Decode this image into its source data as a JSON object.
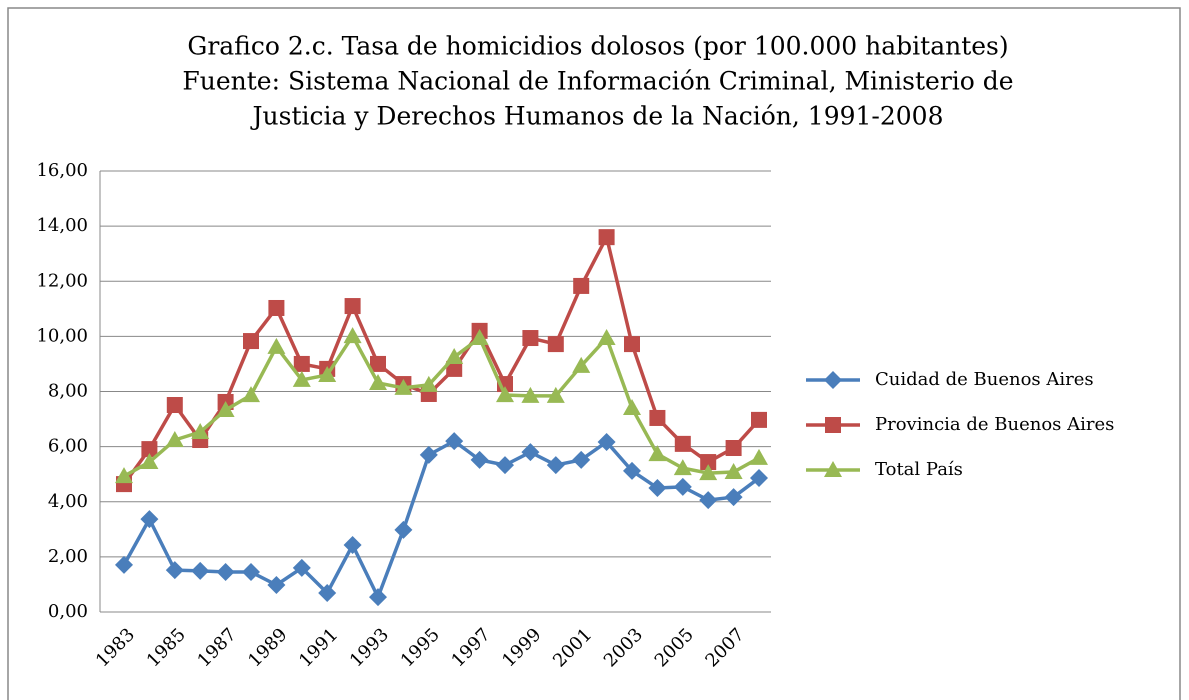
{
  "chart_data": {
    "type": "line",
    "title": [
      "Grafico 2.c. Tasa de homicidios dolosos (por 100.000 habitantes)",
      "Fuente: Sistema Nacional de Información Criminal, Ministerio de",
      "Justicia y Derechos Humanos de la Nación, 1991-2008"
    ],
    "categories": [
      "1983",
      null,
      "1985",
      null,
      "1987",
      null,
      "1989",
      null,
      "1991",
      null,
      "1993",
      null,
      "1995",
      null,
      "1997",
      null,
      "1999",
      null,
      "2001",
      null,
      "2003",
      null,
      "2005",
      null,
      "2007",
      null
    ],
    "series": [
      {
        "name": "Cuidad de Buenos Aires",
        "color": "#4a7ebb",
        "marker": "diamond",
        "values": [
          1.71,
          3.37,
          1.52,
          1.49,
          1.45,
          1.45,
          0.98,
          1.6,
          0.69,
          2.43,
          0.54,
          2.98,
          5.7,
          6.2,
          5.52,
          5.33,
          5.8,
          5.33,
          5.52,
          6.17,
          5.12,
          4.5,
          4.54,
          4.06,
          4.17,
          4.86
        ]
      },
      {
        "name": "Provincia de Buenos Aires",
        "color": "#be4b48",
        "marker": "square",
        "values": [
          4.64,
          5.91,
          7.51,
          6.24,
          7.62,
          9.83,
          11.03,
          9.0,
          8.82,
          11.1,
          9.0,
          8.27,
          7.91,
          8.82,
          10.2,
          8.27,
          9.94,
          9.72,
          11.83,
          13.6,
          9.72,
          7.04,
          6.1,
          5.44,
          5.95,
          6.97
        ]
      },
      {
        "name": "Total País",
        "color": "#98b954",
        "marker": "triangle",
        "values": [
          4.93,
          5.44,
          6.24,
          6.53,
          7.33,
          7.87,
          9.62,
          8.42,
          8.6,
          10.01,
          8.31,
          8.13,
          8.24,
          9.25,
          9.94,
          7.87,
          7.84,
          7.84,
          8.93,
          9.94,
          7.4,
          5.73,
          5.22,
          5.04,
          5.08,
          5.59
        ]
      }
    ],
    "ylim": [
      0,
      16
    ],
    "yticks": [
      {
        "value": 0,
        "label": "0,00"
      },
      {
        "value": 2,
        "label": "2,00"
      },
      {
        "value": 4,
        "label": "4,00"
      },
      {
        "value": 6,
        "label": "6,00"
      },
      {
        "value": 8,
        "label": "8,00"
      },
      {
        "value": 10,
        "label": "10,00"
      },
      {
        "value": 12,
        "label": "12,00"
      },
      {
        "value": 14,
        "label": "14,00"
      },
      {
        "value": 16,
        "label": "16,00"
      }
    ],
    "grid": true,
    "legend": "right"
  }
}
